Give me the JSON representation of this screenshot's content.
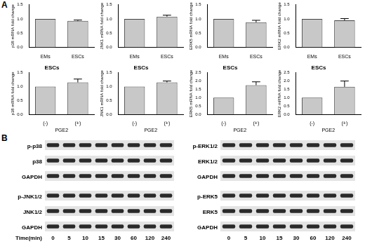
{
  "panel_labels": [
    "A",
    "B"
  ],
  "chart_data": [
    {
      "type": "bar",
      "y_label": "p38 mRNA fold change",
      "categories": [
        "EMs",
        "ESCs"
      ],
      "values": [
        1.0,
        0.93
      ],
      "errors": [
        0,
        0.03
      ],
      "color": "#c8c8c8",
      "ylim": [
        0,
        1.5
      ],
      "yticks": [
        {
          "value": 0,
          "label": "0.0"
        },
        0.5,
        {
          "value": 1,
          "label": "1.0"
        },
        1.5
      ],
      "grid": false
    },
    {
      "type": "bar",
      "y_label": "JNK1 mRNA fold change",
      "categories": [
        "EMs",
        "ESCs"
      ],
      "values": [
        1.0,
        1.08
      ],
      "errors": [
        0,
        0.05
      ],
      "color": "#c8c8c8",
      "ylim": [
        0,
        1.5
      ],
      "yticks": [
        {
          "value": 0,
          "label": "0.0"
        },
        0.5,
        {
          "value": 1,
          "label": "1.0"
        },
        1.5
      ],
      "grid": false
    },
    {
      "type": "bar",
      "y_label": "ERK5 mRNA fold change",
      "categories": [
        "EMs",
        "ESCs"
      ],
      "values": [
        1.0,
        0.88
      ],
      "errors": [
        0,
        0.07
      ],
      "color": "#c8c8c8",
      "ylim": [
        0,
        1.5
      ],
      "yticks": [
        {
          "value": 0,
          "label": "0.0"
        },
        0.5,
        {
          "value": 1,
          "label": "1.0"
        },
        1.5
      ],
      "grid": false
    },
    {
      "type": "bar",
      "y_label": "ERK2 mRNA fold change",
      "categories": [
        "EMs",
        "ESCs"
      ],
      "values": [
        1.0,
        0.95
      ],
      "errors": [
        0,
        0.06
      ],
      "color": "#c8c8c8",
      "ylim": [
        0,
        1.5
      ],
      "yticks": [
        {
          "value": 0,
          "label": "0.0"
        },
        0.5,
        {
          "value": 1,
          "label": "1.0"
        },
        1.5
      ],
      "grid": false
    },
    {
      "type": "bar",
      "title": "ESCs",
      "x_label": "PGE2",
      "y_label": "p38 mRNA fold change",
      "categories": [
        "(-)",
        "(+)"
      ],
      "values": [
        1.0,
        1.15
      ],
      "errors": [
        0,
        0.12
      ],
      "color": "#c8c8c8",
      "ylim": [
        0,
        1.5
      ],
      "yticks": [
        {
          "value": 0,
          "label": "0.0"
        },
        0.5,
        {
          "value": 1,
          "label": "1.0"
        },
        1.5
      ],
      "grid": false
    },
    {
      "type": "bar",
      "title": "ESCs",
      "x_label": "PGE2",
      "y_label": "JNK1 mRNA fold change",
      "categories": [
        "(-)",
        "(+)"
      ],
      "values": [
        1.0,
        1.15
      ],
      "errors": [
        0,
        0.05
      ],
      "color": "#c8c8c8",
      "ylim": [
        0,
        1.5
      ],
      "yticks": [
        {
          "value": 0,
          "label": "0.0"
        },
        0.5,
        {
          "value": 1,
          "label": "1.0"
        },
        1.5
      ],
      "grid": false
    },
    {
      "type": "bar",
      "title": "ESCs",
      "x_label": "PGE2",
      "y_label": "ERK5 mRNA fold change",
      "categories": [
        "(-)",
        "(+)"
      ],
      "values": [
        1.0,
        1.75
      ],
      "errors": [
        0,
        0.2
      ],
      "color": "#c8c8c8",
      "ylim": [
        0,
        2.5
      ],
      "yticks": [
        {
          "value": 0,
          "label": "0.0"
        },
        0.5,
        {
          "value": 1,
          "label": "1.0"
        },
        1.5,
        {
          "value": 2,
          "label": "2.0"
        },
        2.5
      ],
      "grid": false
    },
    {
      "type": "bar",
      "title": "ESCs",
      "x_label": "PGE2",
      "y_label": "ERK2 mRNA fold change",
      "categories": [
        "(-)",
        "(+)"
      ],
      "values": [
        1.0,
        1.65
      ],
      "errors": [
        0,
        0.35
      ],
      "color": "#c8c8c8",
      "ylim": [
        0,
        2.5
      ],
      "yticks": [
        {
          "value": 0,
          "label": "0.0"
        },
        0.5,
        {
          "value": 1,
          "label": "1.0"
        },
        1.5,
        {
          "value": 2,
          "label": "2.0"
        },
        2.5
      ],
      "grid": false
    }
  ],
  "blots": {
    "columns": [
      {
        "groups": [
          [
            "p-p38",
            "p38",
            "GAPDH"
          ],
          [
            "p-JNK1/2",
            "JNK1/2",
            "GAPDH"
          ]
        ]
      },
      {
        "groups": [
          [
            "p-ERK1/2",
            "ERK1/2",
            "GAPDH"
          ],
          [
            "p-ERK5",
            "ERK5",
            "GAPDH"
          ]
        ]
      }
    ],
    "time_label": "Time(min)",
    "times": [
      0,
      5,
      10,
      15,
      30,
      60,
      120,
      240
    ]
  }
}
